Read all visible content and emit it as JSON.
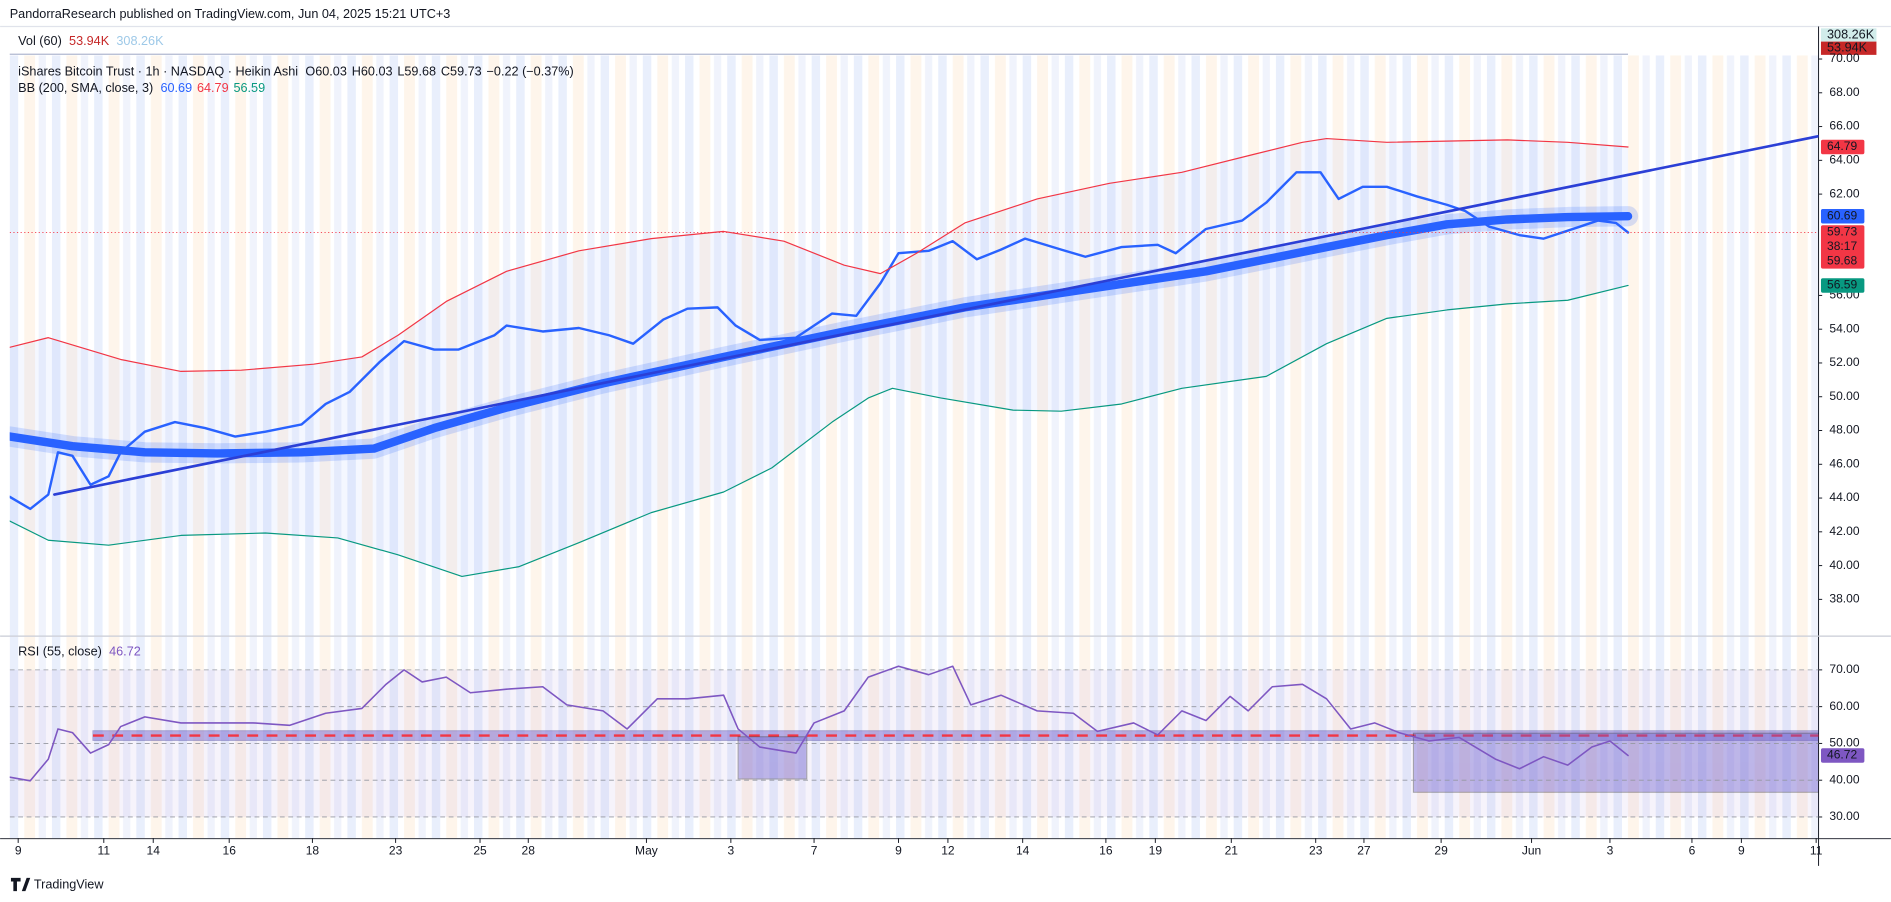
{
  "header": {
    "published": "PandorraResearch published on TradingView.com, Jun 04, 2025 15:21 UTC+3"
  },
  "volume_legend": {
    "name": "Vol (60)",
    "value": "53.94K",
    "ma": "308.26K"
  },
  "symbol_legend": {
    "name": "iShares Bitcoin Trust · 1h · NASDAQ · Heikin Ashi",
    "open": "O60.03",
    "high": "H60.03",
    "low": "L59.68",
    "close": "C59.73",
    "change": "−0.22 (−0.37%)"
  },
  "bb_legend": {
    "name": "BB (200, SMA, close, 3)",
    "basis": "60.69",
    "upper": "64.79",
    "lower": "56.59"
  },
  "rsi_legend": {
    "name": "RSI (55, close)",
    "value": "46.72"
  },
  "volume_axis_labels": [
    {
      "text": "308.26K",
      "bg": "#d1ecea",
      "fg": "#131722"
    },
    {
      "text": "53.94K",
      "bg": "#c62828",
      "fg": "#ffffff"
    }
  ],
  "footer": {
    "brand": "TradingView"
  },
  "chart_data": [
    {
      "type": "line",
      "xlim": [
        0.8,
        150.8
      ],
      "xticks": [
        {
          "value": 1.5,
          "label": "9"
        },
        {
          "value": 8.6,
          "label": "11"
        },
        {
          "value": 12.7,
          "label": "14"
        },
        {
          "value": 19.0,
          "label": "16"
        },
        {
          "value": 25.9,
          "label": "18"
        },
        {
          "value": 32.8,
          "label": "23"
        },
        {
          "value": 39.8,
          "label": "25"
        },
        {
          "value": 43.8,
          "label": "28"
        },
        {
          "value": 53.6,
          "label": "May"
        },
        {
          "value": 60.6,
          "label": "3"
        },
        {
          "value": 67.5,
          "label": "7"
        },
        {
          "value": 74.5,
          "label": "9"
        },
        {
          "value": 78.6,
          "label": "12"
        },
        {
          "value": 84.8,
          "label": "14"
        },
        {
          "value": 91.7,
          "label": "16"
        },
        {
          "value": 95.8,
          "label": "19"
        },
        {
          "value": 102.1,
          "label": "21"
        },
        {
          "value": 109.1,
          "label": "23"
        },
        {
          "value": 113.1,
          "label": "27"
        },
        {
          "value": 119.5,
          "label": "29"
        },
        {
          "value": 127.0,
          "label": "Jun"
        },
        {
          "value": 133.5,
          "label": "3"
        },
        {
          "value": 140.3,
          "label": "6"
        },
        {
          "value": 144.4,
          "label": "9"
        },
        {
          "value": 150.6,
          "label": "11"
        }
      ],
      "ylim": [
        35.86,
        70.21
      ],
      "yticks": [
        {
          "value": 70,
          "label": "70.00"
        },
        {
          "value": 68,
          "label": "68.00"
        },
        {
          "value": 66,
          "label": "66.00"
        },
        {
          "value": 64,
          "label": "64.00"
        },
        {
          "value": 62,
          "label": "62.00"
        },
        {
          "value": 56,
          "label": "56.00"
        },
        {
          "value": 54,
          "label": "54.00"
        },
        {
          "value": 52,
          "label": "52.00"
        },
        {
          "value": 50,
          "label": "50.00"
        },
        {
          "value": 48,
          "label": "48.00"
        },
        {
          "value": 46,
          "label": "46.00"
        },
        {
          "value": 44,
          "label": "44.00"
        },
        {
          "value": 42,
          "label": "42.00"
        },
        {
          "value": 40,
          "label": "40.00"
        },
        {
          "value": 38,
          "label": "38.00"
        }
      ],
      "series": [
        {
          "name": "Price",
          "color": "#2962ff",
          "width": 2,
          "x": [
            0.8,
            2.5,
            4,
            4.8,
            6,
            7.5,
            9,
            10,
            12,
            14.5,
            17,
            19.5,
            22,
            25,
            27,
            29,
            31.5,
            33.5,
            36,
            38,
            41,
            42,
            45,
            48,
            50.5,
            52.5,
            55,
            57,
            59.5,
            61,
            63,
            66,
            69,
            71,
            73,
            74.5,
            77,
            79,
            81,
            83,
            85,
            88,
            90,
            93,
            96,
            97.5,
            100,
            103,
            105,
            106,
            107.5,
            109.5,
            111,
            113,
            115,
            117.5,
            120,
            121.5,
            123.5,
            126,
            128,
            131,
            132.5,
            134,
            135
          ],
          "values": [
            44.07,
            43.36,
            44.21,
            46.71,
            46.5,
            44.79,
            45.29,
            46.71,
            47.93,
            48.5,
            48.14,
            47.64,
            47.93,
            48.36,
            49.57,
            50.29,
            52.07,
            53.29,
            52.79,
            52.79,
            53.64,
            54.21,
            53.86,
            54.07,
            53.64,
            53.14,
            54.57,
            55.21,
            55.29,
            54.21,
            53.36,
            53.5,
            54.93,
            54.79,
            56.71,
            58.5,
            58.64,
            59.21,
            58.14,
            58.71,
            59.36,
            58.71,
            58.29,
            58.86,
            59.0,
            58.5,
            59.93,
            60.43,
            61.5,
            62.21,
            63.29,
            63.29,
            61.71,
            62.43,
            62.43,
            61.86,
            61.36,
            61.0,
            60.07,
            59.57,
            59.36,
            60.07,
            60.43,
            60.29,
            59.73
          ]
        },
        {
          "name": "Upper",
          "color": "#f23645",
          "width": 1,
          "x": [
            0.8,
            4,
            10,
            15,
            20,
            26,
            30,
            33,
            37,
            42,
            48,
            54,
            60,
            65,
            70,
            73,
            76,
            80,
            86,
            92,
            98,
            104,
            108,
            110,
            115,
            125,
            130,
            135
          ],
          "values": [
            52.93,
            53.5,
            52.21,
            51.5,
            51.57,
            51.93,
            52.36,
            53.64,
            55.64,
            57.43,
            58.64,
            59.36,
            59.79,
            59.21,
            57.79,
            57.29,
            58.5,
            60.29,
            61.71,
            62.64,
            63.29,
            64.36,
            65.07,
            65.29,
            65.07,
            65.21,
            65.07,
            64.79
          ]
        },
        {
          "name": "Basis",
          "color": "#2962ff",
          "width": 7,
          "x": [
            0.8,
            6,
            12,
            18,
            25,
            31,
            36,
            42,
            50,
            60,
            70,
            80,
            90,
            100,
            105,
            110,
            115,
            120,
            125,
            130,
            135
          ],
          "values": [
            47.64,
            47.07,
            46.71,
            46.64,
            46.71,
            46.93,
            48.14,
            49.36,
            50.79,
            52.36,
            53.86,
            55.29,
            56.36,
            57.43,
            58.14,
            58.86,
            59.57,
            60.21,
            60.5,
            60.64,
            60.69
          ]
        },
        {
          "name": "Lower",
          "color": "#089981",
          "width": 1,
          "x": [
            0.8,
            4,
            9,
            15,
            22,
            28,
            33,
            38.3,
            43,
            48,
            54,
            60,
            64,
            69,
            72,
            74,
            78,
            84,
            88,
            93,
            98,
            105,
            110,
            115,
            120,
            125,
            130,
            135
          ],
          "values": [
            42.64,
            41.5,
            41.21,
            41.79,
            41.93,
            41.64,
            40.64,
            39.36,
            39.93,
            41.36,
            43.14,
            44.36,
            45.79,
            48.5,
            49.93,
            50.5,
            49.93,
            49.21,
            49.14,
            49.57,
            50.5,
            51.21,
            53.14,
            54.64,
            55.14,
            55.5,
            55.71,
            56.59
          ]
        },
        {
          "name": "Trend",
          "color": "#2b3fd6",
          "width": 2.2,
          "x": [
            4.5,
            150.8
          ],
          "values": [
            44.21,
            65.43
          ]
        }
      ],
      "axis_labels": [
        {
          "value": 64.79,
          "bg": "#f23645"
        },
        {
          "value": 60.69,
          "bg": "#2962ff"
        },
        {
          "value": 59.73,
          "bg": "#f23645",
          "countdown": "38:17",
          "low": "59.68"
        },
        {
          "value": 56.59,
          "bg": "#089981"
        }
      ]
    },
    {
      "type": "line",
      "xlim": [
        0.8,
        150.8
      ],
      "ylim": [
        24.26,
        79.02
      ],
      "yticks": [
        {
          "value": 70,
          "label": "70.00"
        },
        {
          "value": 60,
          "label": "60.00"
        },
        {
          "value": 50,
          "label": "50.00"
        },
        {
          "value": 40,
          "label": "40.00"
        },
        {
          "value": 30,
          "label": "30.00"
        }
      ],
      "series": [
        {
          "name": "RSI",
          "color": "#7e57c2",
          "width": 1.3,
          "x": [
            0.8,
            2.5,
            4,
            4.8,
            6,
            7.5,
            9,
            10,
            12,
            15,
            18,
            21,
            24,
            27,
            30,
            32,
            33.5,
            35,
            37,
            39,
            42,
            45,
            47,
            50,
            52,
            54.5,
            57,
            60,
            61.2,
            63,
            66,
            67.5,
            70,
            72,
            74.5,
            77,
            79,
            80.5,
            83,
            86,
            89,
            91,
            94,
            96,
            98,
            100,
            102,
            103.5,
            105.5,
            108,
            110,
            112,
            114,
            116,
            118.5,
            121,
            124,
            126,
            128,
            130,
            132,
            133.5,
            135
          ],
          "values": [
            40.82,
            39.84,
            45.74,
            53.93,
            52.95,
            47.38,
            49.67,
            54.59,
            57.21,
            55.57,
            55.57,
            55.57,
            54.92,
            58.2,
            59.51,
            66.07,
            70.0,
            66.72,
            68.03,
            63.77,
            64.75,
            65.41,
            60.49,
            58.85,
            53.93,
            62.13,
            62.13,
            63.11,
            53.93,
            49.02,
            47.38,
            55.57,
            58.85,
            68.03,
            70.98,
            68.69,
            70.98,
            60.49,
            63.11,
            58.85,
            58.2,
            53.28,
            55.57,
            52.3,
            58.85,
            56.23,
            62.79,
            58.85,
            65.41,
            66.07,
            62.13,
            53.93,
            55.57,
            52.95,
            50.66,
            51.64,
            45.74,
            43.11,
            46.39,
            44.1,
            49.02,
            50.66,
            46.72
          ]
        }
      ],
      "axis_labels": [
        {
          "value": 46.72,
          "bg": "#7e57c2"
        }
      ]
    }
  ]
}
